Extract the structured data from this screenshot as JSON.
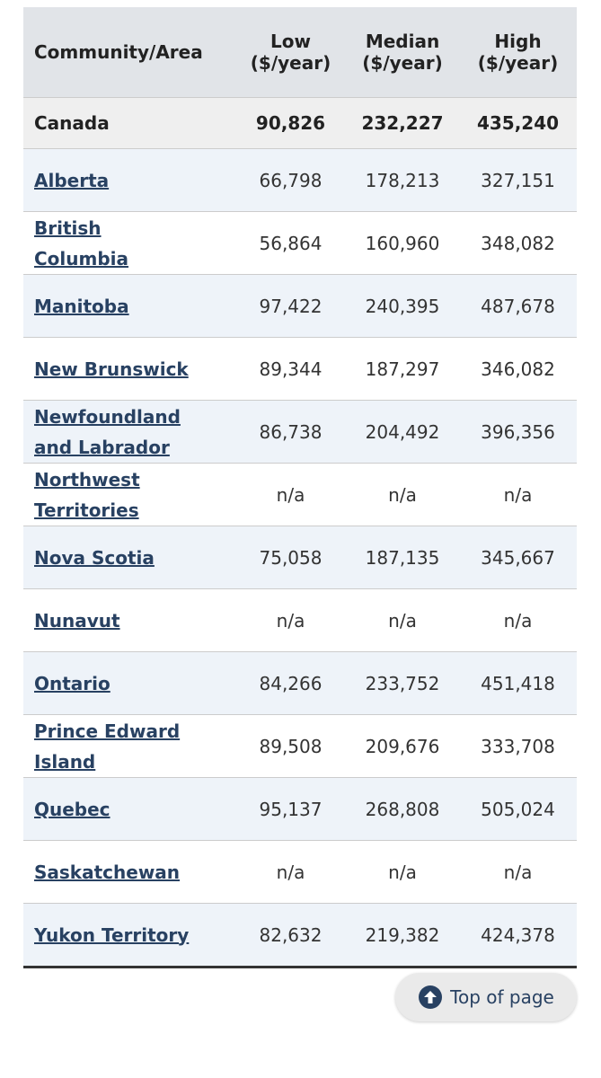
{
  "table": {
    "columns": [
      {
        "label": "Community/Area"
      },
      {
        "label": "Low",
        "unit": "($/year)"
      },
      {
        "label": "Median",
        "unit": "($/year)"
      },
      {
        "label": "High",
        "unit": "($/year)"
      }
    ],
    "rows": [
      [
        "Canada",
        "90,826",
        "232,227",
        "435,240"
      ],
      [
        "Alberta",
        "66,798",
        "178,213",
        "327,151"
      ],
      [
        "British Columbia",
        "56,864",
        "160,960",
        "348,082"
      ],
      [
        "Manitoba",
        "97,422",
        "240,395",
        "487,678"
      ],
      [
        "New Brunswick",
        "89,344",
        "187,297",
        "346,082"
      ],
      [
        "Newfoundland and Labrador",
        "86,738",
        "204,492",
        "396,356"
      ],
      [
        "Northwest Territories",
        "n/a",
        "n/a",
        "n/a"
      ],
      [
        "Nova Scotia",
        "75,058",
        "187,135",
        "345,667"
      ],
      [
        "Nunavut",
        "n/a",
        "n/a",
        "n/a"
      ],
      [
        "Ontario",
        "84,266",
        "233,752",
        "451,418"
      ],
      [
        "Prince Edward Island",
        "89,508",
        "209,676",
        "333,708"
      ],
      [
        "Quebec",
        "95,137",
        "268,808",
        "505,024"
      ],
      [
        "Saskatchewan",
        "n/a",
        "n/a",
        "n/a"
      ],
      [
        "Yukon Territory",
        "82,632",
        "219,382",
        "424,378"
      ]
    ]
  },
  "top_button": {
    "label": "Top of page"
  }
}
